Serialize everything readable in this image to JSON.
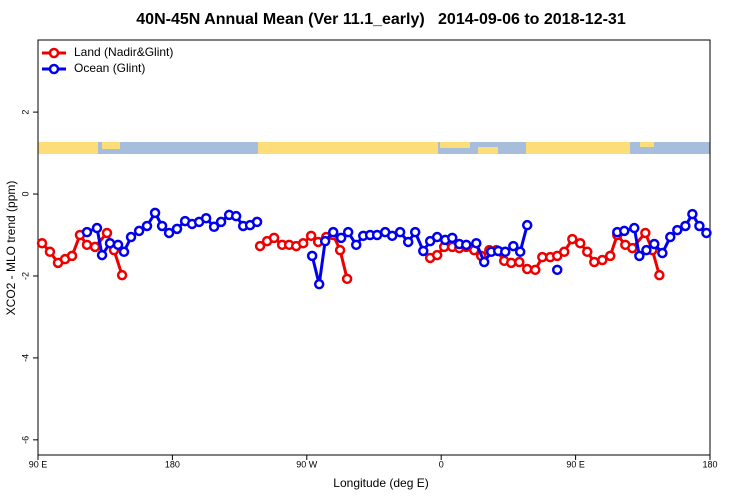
{
  "chart_data": {
    "type": "line",
    "title": "40N-45N Annual Mean (Ver 11.1_early)   2014-09-06 to 2018-12-31",
    "x_label": "Longitude (deg E)",
    "y_label": "XCO2 - MLO trend (ppm)",
    "xlim": [
      90,
      540
    ],
    "ylim": [
      -6.37,
      3.76
    ],
    "xticks": [
      {
        "value": 90,
        "label": "90 E"
      },
      180,
      {
        "value": 270,
        "label": "90 W"
      },
      {
        "value": 360,
        "label": "0"
      },
      {
        "value": 450,
        "label": "90 E"
      },
      {
        "value": 540,
        "label": "180"
      }
    ],
    "yticks": [
      -6,
      -4,
      -2,
      0,
      2
    ],
    "legend": "top-left",
    "series": [
      {
        "name": "Land (Nadir&Glint)",
        "color": "#ee0000",
        "x": [
          92.7,
          98.0,
          103.4,
          108.1,
          112.8,
          118.1,
          122.8,
          128.2,
          136.2,
          140.9,
          146.3,
          null,
          238.7,
          243.4,
          248.1,
          253.5,
          258.2,
          262.9,
          267.6,
          272.9,
          277.6,
          283.0,
          287.7,
          292.3,
          297.0,
          null,
          352.6,
          357.3,
          362.0,
          367.4,
          372.1,
          376.8,
          382.1,
          386.8,
          392.2,
          396.9,
          402.2,
          406.9,
          412.3,
          417.6,
          423.0,
          427.7,
          433.0,
          437.7,
          442.4,
          447.8,
          453.1,
          457.8,
          462.5,
          467.9,
          473.2,
          477.9,
          483.3,
          488.0,
          496.7,
          501.4,
          506.1
        ],
        "values": [
          -1.2,
          -1.41,
          -1.68,
          -1.59,
          -1.51,
          -1.0,
          -1.24,
          -1.29,
          -0.95,
          -1.37,
          -1.98,
          null,
          -1.27,
          -1.15,
          -1.07,
          -1.24,
          -1.24,
          -1.27,
          -1.2,
          -1.02,
          -1.17,
          -1.05,
          -1.0,
          -1.37,
          -2.07,
          null,
          -1.56,
          -1.49,
          -1.29,
          -1.29,
          -1.32,
          -1.29,
          -1.37,
          -1.51,
          -1.37,
          -1.37,
          -1.63,
          -1.68,
          -1.66,
          -1.83,
          -1.85,
          -1.54,
          -1.54,
          -1.51,
          -1.41,
          -1.1,
          -1.2,
          -1.41,
          -1.66,
          -1.61,
          -1.51,
          -1.0,
          -1.24,
          -1.32,
          -0.95,
          -1.37,
          -1.98
        ]
      },
      {
        "name": "Ocean (Glint)",
        "color": "#0000ee",
        "x": [
          122.8,
          129.5,
          132.9,
          138.2,
          143.6,
          147.6,
          152.3,
          157.7,
          163.0,
          168.4,
          173.1,
          177.8,
          183.1,
          188.5,
          193.2,
          197.9,
          202.6,
          207.9,
          212.6,
          218.0,
          222.7,
          227.4,
          232.0,
          236.7,
          null,
          273.6,
          278.3,
          282.3,
          287.7,
          293.0,
          297.7,
          303.1,
          307.8,
          312.4,
          317.1,
          322.5,
          327.2,
          332.5,
          337.9,
          342.6,
          348.0,
          352.6,
          357.3,
          362.7,
          367.4,
          372.1,
          376.8,
          383.5,
          388.8,
          393.5,
          398.2,
          402.9,
          408.3,
          412.9,
          417.6,
          null,
          437.7,
          null,
          477.9,
          482.6,
          489.3,
          492.7,
          497.4,
          502.7,
          508.1,
          513.4,
          518.1,
          523.5,
          528.2,
          532.9,
          537.6
        ],
        "values": [
          -0.93,
          -0.83,
          -1.49,
          -1.2,
          -1.24,
          -1.41,
          -1.05,
          -0.9,
          -0.78,
          -0.46,
          -0.78,
          -0.95,
          -0.85,
          -0.66,
          -0.73,
          -0.68,
          -0.59,
          -0.8,
          -0.68,
          -0.51,
          -0.54,
          -0.78,
          -0.76,
          -0.68,
          null,
          -1.51,
          -2.2,
          -1.15,
          -0.93,
          -1.07,
          -0.93,
          -1.24,
          -1.02,
          -1.0,
          -1.0,
          -0.93,
          -1.02,
          -0.93,
          -1.17,
          -0.93,
          -1.39,
          -1.15,
          -1.05,
          -1.12,
          -1.07,
          -1.22,
          -1.24,
          -1.2,
          -1.66,
          -1.41,
          -1.39,
          -1.41,
          -1.27,
          -1.41,
          -0.76,
          null,
          -1.85,
          null,
          -0.93,
          -0.9,
          -0.83,
          -1.51,
          -1.37,
          -1.22,
          -1.44,
          -1.05,
          -0.88,
          -0.78,
          -0.49,
          -0.78,
          -0.95
        ]
      }
    ]
  }
}
